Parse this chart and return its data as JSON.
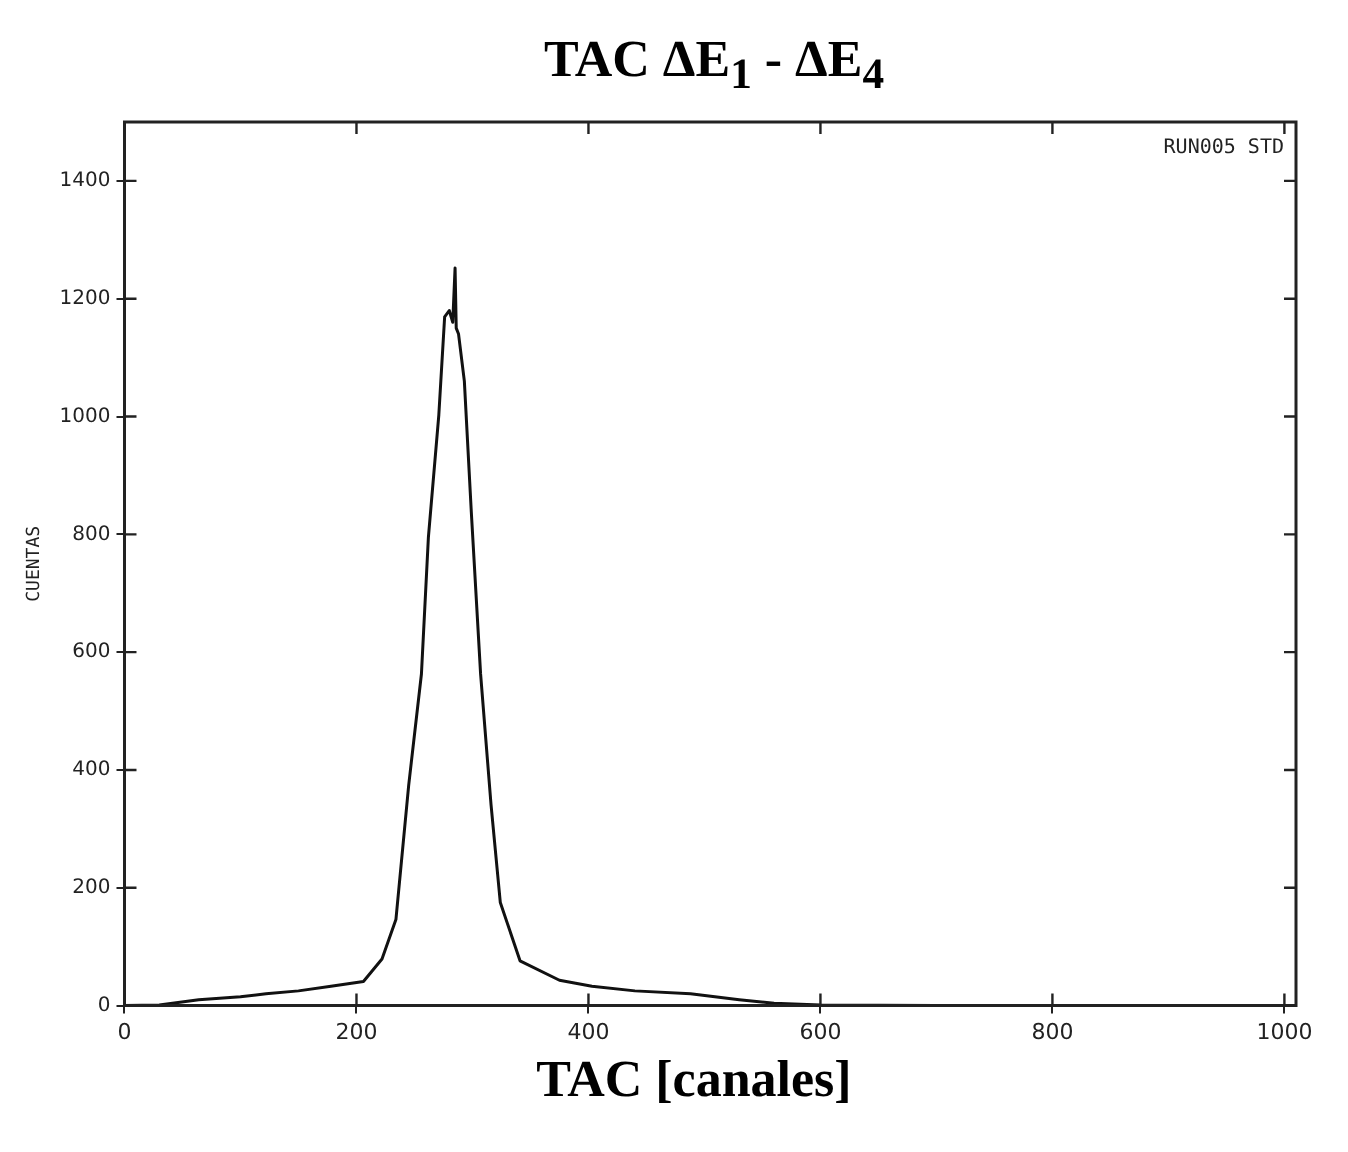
{
  "chart_data": {
    "type": "line",
    "title": "TAC ΔE$_{1}$ - ΔE$_{4}$",
    "xlabel": "TAC [canales]",
    "ylabel": "CUENTAS",
    "annotations": [
      "RUN005 STD"
    ],
    "series": [
      {
        "color": "#111111",
        "x": [
          0,
          30,
          64,
          100,
          122,
          150,
          178,
          206,
          222,
          234,
          245,
          256,
          262,
          271,
          276,
          280,
          283,
          285,
          286,
          288,
          293,
          299,
          307,
          316,
          324,
          341,
          375,
          403,
          440,
          488,
          530,
          560,
          600,
          700,
          800,
          900,
          1000
        ],
        "values": [
          0,
          1,
          10,
          15,
          20,
          25,
          33,
          41,
          79,
          146,
          374,
          563,
          795,
          1003,
          1169,
          1180,
          1160,
          1252,
          1150,
          1140,
          1060,
          838,
          563,
          341,
          175,
          76,
          43,
          33,
          25,
          20,
          10,
          4,
          1,
          0,
          0,
          0,
          0
        ]
      }
    ],
    "xlim": [
      0,
      1010
    ],
    "ylim": [
      0,
      1500
    ],
    "xticks": [
      0,
      200,
      400,
      600,
      800,
      1000
    ],
    "yticks": [
      0,
      200,
      400,
      600,
      800,
      1000,
      1200,
      1400
    ],
    "marker": "none",
    "line_style": "solid",
    "grid": false,
    "legend": false
  }
}
